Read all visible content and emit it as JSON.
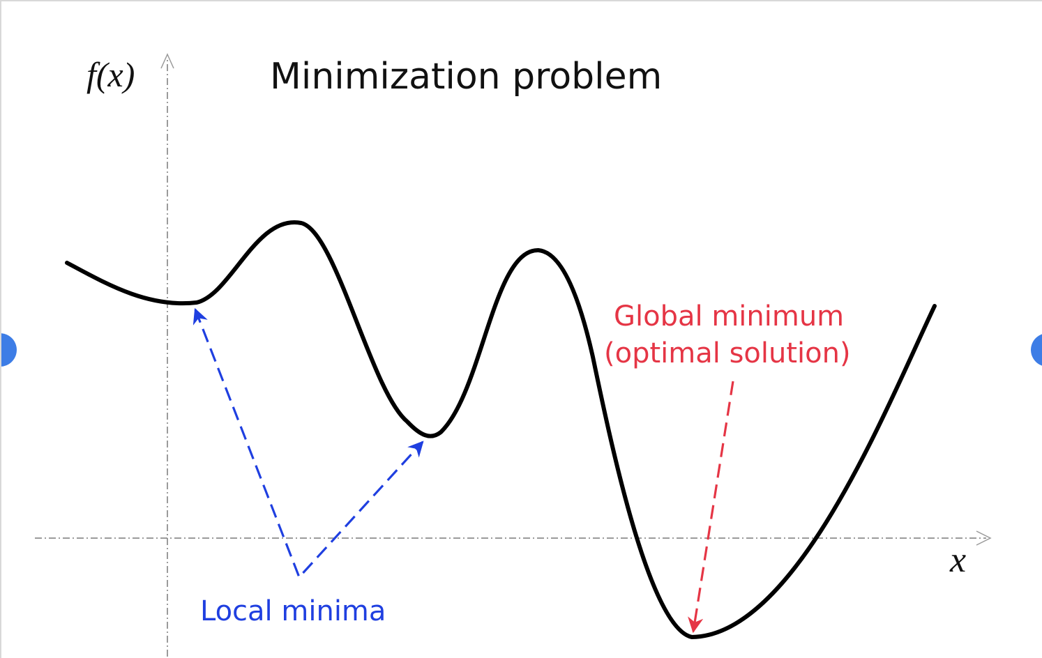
{
  "title": "Minimization problem",
  "axes": {
    "y_label": "f(x)",
    "x_label": "x"
  },
  "annotations": {
    "local_minima": "Local minima",
    "global_minimum_line1": "Global minimum",
    "global_minimum_line2": "(optimal solution)"
  },
  "colors": {
    "curve": "#000000",
    "axis": "#7a7a7a",
    "local_minima": "#1f3fe0",
    "global_minimum": "#e53545",
    "nav_button": "#3d7de6"
  },
  "icons": {
    "nav_previous": "chevron-left-icon",
    "nav_next": "chevron-right-icon"
  }
}
